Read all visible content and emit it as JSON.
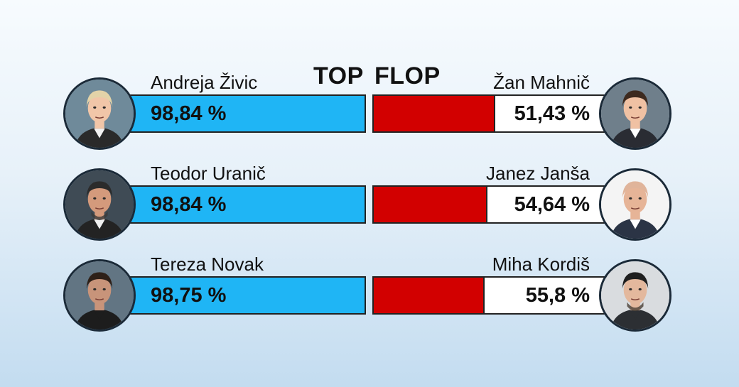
{
  "headings": {
    "top": "TOP",
    "flop": "FLOP"
  },
  "colors": {
    "top_bar": "#1fb5f5",
    "flop_bar": "#d20000",
    "flop_remainder": "#ffffff"
  },
  "chart_data": {
    "type": "bar",
    "title": "",
    "xlabel": "",
    "ylabel": "",
    "ylim": [
      0,
      100
    ],
    "series": [
      {
        "name": "TOP",
        "categories": [
          "Andreja Živic",
          "Teodor Uranič",
          "Tereza Novak"
        ],
        "values": [
          98.84,
          98.84,
          98.75
        ],
        "labels": [
          "98,84 %",
          "98,84 %",
          "98,75 %"
        ]
      },
      {
        "name": "FLOP",
        "categories": [
          "Žan Mahnič",
          "Janez Janša",
          "Miha Kordiš"
        ],
        "values": [
          51.43,
          54.64,
          55.8
        ],
        "labels": [
          "51,43 %",
          "54,64 %",
          "55,8 %"
        ]
      }
    ]
  },
  "avatars": {
    "top": [
      "portrait-blonde-woman",
      "portrait-bearded-man",
      "portrait-dark-haired-woman"
    ],
    "flop": [
      "portrait-young-man-suit",
      "portrait-bald-man-suit",
      "portrait-curly-haired-man"
    ]
  }
}
